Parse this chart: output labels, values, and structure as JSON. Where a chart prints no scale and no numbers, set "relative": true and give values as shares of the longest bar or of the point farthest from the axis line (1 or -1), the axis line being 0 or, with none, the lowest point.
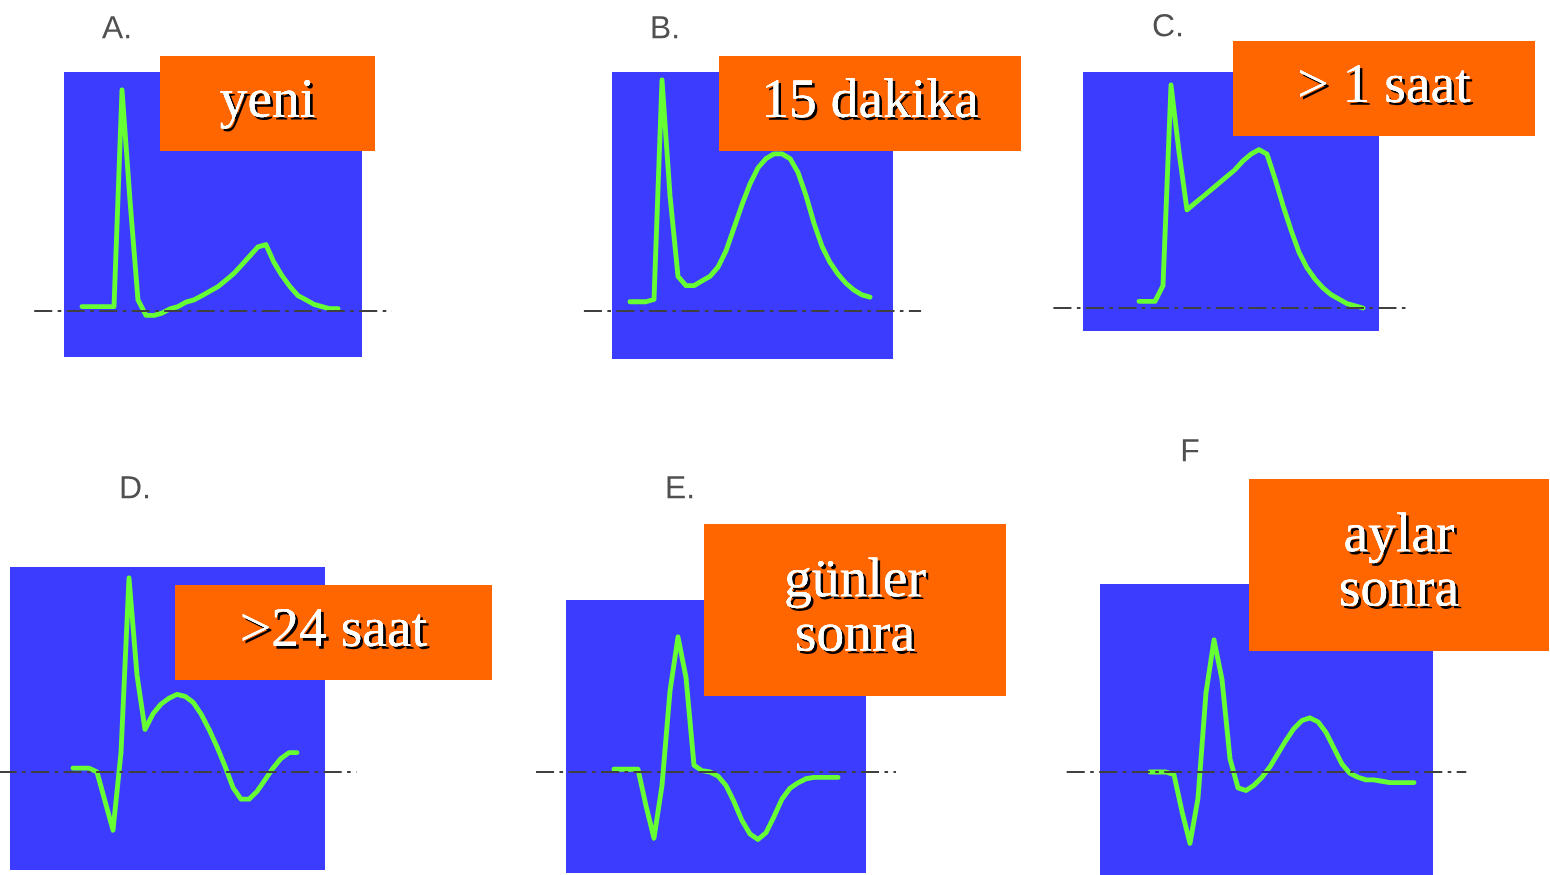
{
  "chart_data": [
    {
      "type": "line",
      "title": "A.",
      "relative": true,
      "categories": [
        null,
        null,
        null,
        null,
        null,
        null,
        null,
        null,
        null,
        null,
        null,
        null,
        null,
        null,
        null,
        null,
        null,
        null,
        null,
        null,
        null,
        null,
        null,
        null,
        null,
        null,
        null,
        null,
        null,
        null,
        null,
        null,
        null
      ],
      "series": [
        {
          "color": "#66ff33",
          "values": [
            0.02,
            0.02,
            0.02,
            0.02,
            0.02,
            1,
            0.5,
            0.05,
            -0.02,
            -0.02,
            -0.01,
            0.01,
            0.02,
            0.04,
            0.05,
            0.07,
            0.09,
            0.11,
            0.14,
            0.17,
            0.21,
            0.25,
            0.29,
            0.3,
            0.22,
            0.16,
            0.11,
            0.07,
            0.05,
            0.03,
            0.02,
            0.01,
            0.01
          ]
        }
      ],
      "ref_lines": [
        {
          "axis": "y",
          "value": 0,
          "color": "#404040",
          "line_style": "dashdot"
        }
      ],
      "annotations": [
        "yeni"
      ]
    },
    {
      "type": "line",
      "title": "B.",
      "relative": true,
      "categories": [
        null,
        null,
        null,
        null,
        null,
        null,
        null,
        null,
        null,
        null,
        null,
        null,
        null,
        null,
        null,
        null,
        null,
        null,
        null,
        null,
        null,
        null,
        null,
        null,
        null,
        null,
        null,
        null,
        null,
        null,
        null
      ],
      "series": [
        {
          "color": "#66ff33",
          "values": [
            0.04,
            0.04,
            0.04,
            0.05,
            1,
            0.5,
            0.15,
            0.11,
            0.11,
            0.13,
            0.15,
            0.19,
            0.26,
            0.36,
            0.46,
            0.55,
            0.62,
            0.66,
            0.68,
            0.68,
            0.66,
            0.6,
            0.5,
            0.38,
            0.28,
            0.21,
            0.16,
            0.12,
            0.09,
            0.07,
            0.06
          ]
        }
      ],
      "ref_lines": [
        {
          "axis": "y",
          "value": 0,
          "color": "#404040",
          "line_style": "dashdot"
        }
      ],
      "annotations": [
        "15 dakika"
      ]
    },
    {
      "type": "line",
      "title": "C.",
      "relative": true,
      "categories": [
        null,
        null,
        null,
        null,
        null,
        null,
        null,
        null,
        null,
        null,
        null,
        null,
        null,
        null,
        null,
        null,
        null,
        null,
        null,
        null,
        null,
        null,
        null,
        null,
        null,
        null,
        null,
        null,
        null
      ],
      "series": [
        {
          "color": "#66ff33",
          "values": [
            0.03,
            0.03,
            0.03,
            0.1,
            1,
            0.7,
            0.44,
            0.47,
            0.5,
            0.53,
            0.56,
            0.59,
            0.62,
            0.66,
            0.69,
            0.71,
            0.69,
            0.58,
            0.46,
            0.35,
            0.25,
            0.18,
            0.13,
            0.09,
            0.06,
            0.04,
            0.02,
            0.01,
            0
          ]
        }
      ],
      "ref_lines": [
        {
          "axis": "y",
          "value": 0,
          "color": "#404040",
          "line_style": "dashdot"
        }
      ],
      "annotations": [
        "> 1 saat"
      ]
    },
    {
      "type": "line",
      "title": "D.",
      "relative": true,
      "categories": [
        null,
        null,
        null,
        null,
        null,
        null,
        null,
        null,
        null,
        null,
        null,
        null,
        null,
        null,
        null,
        null,
        null,
        null,
        null,
        null,
        null,
        null,
        null,
        null,
        null,
        null,
        null,
        null,
        null
      ],
      "series": [
        {
          "color": "#66ff33",
          "values": [
            0.02,
            0.02,
            0.02,
            0,
            -0.15,
            -0.3,
            0.1,
            1,
            0.5,
            0.22,
            0.3,
            0.35,
            0.38,
            0.4,
            0.39,
            0.36,
            0.3,
            0.22,
            0.13,
            0.03,
            -0.08,
            -0.14,
            -0.14,
            -0.1,
            -0.04,
            0.02,
            0.07,
            0.1,
            0.1
          ]
        }
      ],
      "ref_lines": [
        {
          "axis": "y",
          "value": 0,
          "color": "#404040",
          "line_style": "dashdot"
        }
      ],
      "annotations": [
        ">24 saat"
      ]
    },
    {
      "type": "line",
      "title": "E.",
      "relative": true,
      "categories": [
        null,
        null,
        null,
        null,
        null,
        null,
        null,
        null,
        null,
        null,
        null,
        null,
        null,
        null,
        null,
        null,
        null,
        null,
        null,
        null,
        null,
        null,
        null,
        null,
        null,
        null,
        null,
        null,
        null
      ],
      "series": [
        {
          "color": "#66ff33",
          "values": [
            0.02,
            0.02,
            0.02,
            0.02,
            -0.25,
            -0.49,
            -0.1,
            0.6,
            1,
            0.7,
            0.05,
            0.01,
            0,
            -0.03,
            -0.1,
            -0.22,
            -0.36,
            -0.46,
            -0.5,
            -0.45,
            -0.33,
            -0.2,
            -0.12,
            -0.08,
            -0.05,
            -0.04,
            -0.04,
            -0.04,
            -0.04
          ]
        }
      ],
      "ref_lines": [
        {
          "axis": "y",
          "value": 0,
          "color": "#404040",
          "line_style": "dashdot"
        }
      ],
      "annotations": [
        "günler\nsonra"
      ]
    },
    {
      "type": "line",
      "title": "F",
      "relative": true,
      "categories": [
        null,
        null,
        null,
        null,
        null,
        null,
        null,
        null,
        null,
        null,
        null,
        null,
        null,
        null,
        null,
        null,
        null,
        null,
        null,
        null,
        null,
        null,
        null,
        null,
        null,
        null,
        null,
        null,
        null,
        null,
        null,
        null,
        null,
        null
      ],
      "series": [
        {
          "color": "#66ff33",
          "values": [
            0,
            0,
            0,
            -0.02,
            -0.3,
            -0.54,
            -0.2,
            0.6,
            1,
            0.7,
            0.1,
            -0.12,
            -0.14,
            -0.1,
            -0.04,
            0.04,
            0.14,
            0.24,
            0.33,
            0.39,
            0.41,
            0.38,
            0.3,
            0.18,
            0.06,
            -0.01,
            -0.04,
            -0.06,
            -0.06,
            -0.07,
            -0.08,
            -0.08,
            -0.08,
            -0.08
          ]
        }
      ],
      "ref_lines": [
        {
          "axis": "y",
          "value": 0,
          "color": "#404040",
          "line_style": "dashdot"
        }
      ],
      "annotations": [
        "aylar\nsonra"
      ]
    }
  ]
}
